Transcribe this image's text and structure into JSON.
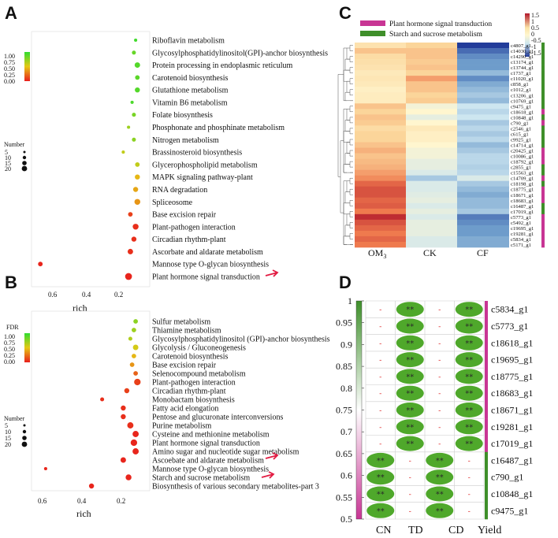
{
  "colors": {
    "red": "#e8221e",
    "orange": "#f19b1f",
    "green": "#3ad43a",
    "pink": "#c83594",
    "grn": "#3f8f2a",
    "leaf": "#4fa82b",
    "arrow": "#e21b42"
  },
  "panels": {
    "A": "A",
    "B": "B",
    "C": "C",
    "D": "D"
  },
  "chart_data": [
    {
      "type": "scatter",
      "panel": "A",
      "xlabel": "rich",
      "xticks": [
        "0.6",
        "0.4",
        "0.2"
      ],
      "xlim": [
        0.7,
        0.03
      ],
      "legend": {
        "fdr_ticks": [
          "1.00",
          "0.75",
          "0.50",
          "0.25",
          "0.00"
        ],
        "number_title": "Number",
        "number_ticks": [
          "5",
          "10",
          "15",
          "20"
        ]
      },
      "pathways": [
        "Riboflavin metabolism",
        "Glycosylphosphatidylinositol(GPI)-anchor biosynthesis",
        "Protein processing in endoplasmic reticulum",
        "Carotenoid biosynthesis",
        "Glutathione metabolism",
        "Vitamin B6 metabolism",
        "Folate biosynthesis",
        "Phosphonate and phosphinate metabolism",
        "Nitrogen metabolism",
        "Brassinosteroid biosynthesis",
        "Glycerophospholipid metabolism",
        "MAPK signaling pathway-plant",
        "RNA degradation",
        "Spliceosome",
        "Base excision repair",
        "Plant-pathogen interaction",
        "Circadian rhythm-plant",
        "Ascorbate and aldarate metabolism",
        "Mannose type O-glycan biosynthesis",
        "Plant hormone signal transduction"
      ],
      "rich": [
        0.11,
        0.12,
        0.1,
        0.1,
        0.1,
        0.13,
        0.12,
        0.15,
        0.12,
        0.18,
        0.1,
        0.1,
        0.11,
        0.1,
        0.14,
        0.11,
        0.12,
        0.14,
        0.65,
        0.15
      ],
      "fdr": [
        0.95,
        0.85,
        0.9,
        0.88,
        0.9,
        0.92,
        0.8,
        0.7,
        0.75,
        0.6,
        0.6,
        0.45,
        0.4,
        0.35,
        0.1,
        0.05,
        0.05,
        0.05,
        0.02,
        0.02
      ],
      "number": [
        1,
        2,
        5,
        3,
        4,
        1,
        2,
        1,
        2,
        1,
        3,
        4,
        4,
        6,
        3,
        6,
        4,
        5,
        3,
        9
      ],
      "highlight": "Plant hormone signal transduction"
    },
    {
      "type": "scatter",
      "panel": "B",
      "xlabel": "rich",
      "xticks": [
        "0.6",
        "0.4",
        "0.2"
      ],
      "xlim": [
        0.7,
        0.03
      ],
      "legend": {
        "fdr_title": "FDR",
        "fdr_ticks": [
          "1.00",
          "0.75",
          "0.50",
          "0.25",
          "0.00"
        ],
        "number_title": "Number",
        "number_ticks": [
          "5",
          "10",
          "15",
          "20"
        ]
      },
      "pathways": [
        "Sulfur metabolism",
        "Thiamine metabolism",
        "Glycosylphosphatidylinositol (GPI)-anchor biosynthesis",
        "Glycolysis / Gluconeogenesis",
        "Carotenoid biosynthesis",
        "Base excision repair",
        "Selenocompound metabolism",
        "Plant-pathogen interaction",
        "Circadian rhythm-plant",
        "Monobactam biosynthesis",
        "Fatty acid elongation",
        "Pentose and glucuronate interconversions",
        "Purine metabolism",
        "Cysteine and methionine metabolism",
        "Plant hormone signal transduction",
        "Amino sugar and nucleotide sugar metabolism",
        "Ascoebate and aldarate metabolism",
        "Mannose type O-glycan biosynthesis",
        "Starch and sucrose metabolism",
        "Biosynthesis of various secondary metabolites-part 3"
      ],
      "rich": [
        0.11,
        0.12,
        0.14,
        0.11,
        0.12,
        0.13,
        0.11,
        0.1,
        0.16,
        0.3,
        0.18,
        0.18,
        0.14,
        0.11,
        0.12,
        0.11,
        0.18,
        0.62,
        0.15,
        0.36
      ],
      "fdr": [
        0.75,
        0.7,
        0.65,
        0.55,
        0.45,
        0.35,
        0.2,
        0.1,
        0.1,
        0.05,
        0.05,
        0.05,
        0.05,
        0.02,
        0.02,
        0.02,
        0.02,
        0.02,
        0.02,
        0.02
      ],
      "number": [
        3,
        3,
        2,
        5,
        3,
        3,
        3,
        8,
        4,
        2,
        4,
        4,
        7,
        7,
        8,
        7,
        5,
        1,
        6,
        4
      ],
      "highlight": [
        "Plant hormone signal transduction",
        "Starch and sucrose metabolism"
      ]
    },
    {
      "type": "heatmap",
      "panel": "C",
      "columns": [
        "OM3",
        "CK",
        "CF"
      ],
      "col_main": [
        "OM",
        "CK",
        "CF"
      ],
      "col_sub": [
        "3",
        "",
        ""
      ],
      "legend": {
        "pathways": [
          "Plant hormone signal transduction",
          "Starch and sucrose metabolism"
        ],
        "scale_ticks": [
          "1.5",
          "1",
          "0.5",
          "0",
          "-0.5",
          "-1",
          "-1.5"
        ]
      },
      "rows": [
        "c4807_g1",
        "c14030_g1",
        "c14290_g1",
        "c13174_g1",
        "c13744_g1",
        "c1737_g1",
        "c11020_g1",
        "c858_g1",
        "c1012_g1",
        "c13206_g1",
        "c10769_g1",
        "c9475_g1",
        "c18618_g1",
        "c10848_g1",
        "c790_g1",
        "c2546_g1",
        "c615_g1",
        "c9925_g1",
        "c14714_g1",
        "c20425_g1",
        "c10086_g1",
        "c18792_g1",
        "c2855_g1",
        "c15563_g1",
        "c14709_g1",
        "c18198_g1",
        "c18775_g1",
        "c18671_g1",
        "c18683_g1",
        "c16487_g1",
        "c17019_g1",
        "c5773_g1",
        "c5492_g1",
        "c19695_g1",
        "c19281_g1",
        "c5834_g1",
        "c5171_g1"
      ],
      "values": [
        [
          0.3,
          0.5,
          -1.5
        ],
        [
          0.6,
          0.6,
          -1.2
        ],
        [
          0.4,
          0.6,
          -1.0
        ],
        [
          0.35,
          0.55,
          -0.9
        ],
        [
          0.3,
          0.6,
          -0.9
        ],
        [
          0.2,
          0.5,
          -0.7
        ],
        [
          0.25,
          0.8,
          -1.0
        ],
        [
          0.2,
          0.6,
          -0.8
        ],
        [
          0.1,
          0.6,
          -0.7
        ],
        [
          0.15,
          0.5,
          -0.6
        ],
        [
          0.15,
          0.55,
          -0.7
        ],
        [
          0.6,
          -0.1,
          -0.4
        ],
        [
          0.5,
          0.0,
          -0.5
        ],
        [
          0.6,
          -0.2,
          -0.4
        ],
        [
          0.55,
          0.0,
          -0.6
        ],
        [
          0.4,
          0.2,
          -0.5
        ],
        [
          0.5,
          0.1,
          -0.6
        ],
        [
          0.5,
          0.1,
          -0.5
        ],
        [
          0.6,
          0.0,
          -0.7
        ],
        [
          0.7,
          -0.1,
          -0.6
        ],
        [
          0.6,
          -0.1,
          -0.5
        ],
        [
          0.65,
          -0.2,
          -0.5
        ],
        [
          0.7,
          -0.2,
          -0.55
        ],
        [
          0.8,
          -0.3,
          -0.5
        ],
        [
          0.9,
          -0.6,
          -0.3
        ],
        [
          1.1,
          -0.3,
          -0.6
        ],
        [
          1.2,
          -0.3,
          -0.7
        ],
        [
          1.2,
          -0.25,
          -0.8
        ],
        [
          1.1,
          -0.2,
          -0.7
        ],
        [
          1.15,
          -0.3,
          -0.7
        ],
        [
          1.0,
          -0.2,
          -0.6
        ],
        [
          1.4,
          -0.3,
          -1.1
        ],
        [
          1.2,
          -0.2,
          -1.0
        ],
        [
          1.1,
          -0.2,
          -0.9
        ],
        [
          1.0,
          -0.2,
          -0.9
        ],
        [
          1.1,
          -0.3,
          -0.8
        ],
        [
          1.0,
          -0.3,
          -0.8
        ]
      ],
      "row_pathway": [
        "sucrose",
        "sucrose",
        "sucrose",
        "sucrose",
        "sucrose",
        "sucrose",
        "sucrose",
        "sucrose",
        "sucrose",
        "sucrose",
        "sucrose",
        "sucrose",
        "hormone",
        "sucrose",
        "hormone",
        "sucrose",
        "sucrose",
        "sucrose",
        "sucrose",
        "hormone",
        "hormone",
        "hormone",
        "sucrose",
        "sucrose",
        "hormone",
        "sucrose",
        "hormone",
        "hormone",
        "hormone",
        "sucrose",
        "sucrose",
        "hormone",
        "hormone",
        "hormone",
        "hormone",
        "hormone",
        "hormone"
      ]
    },
    {
      "type": "heatmap",
      "panel": "D",
      "columns": [
        "CN",
        "TD",
        "CD",
        "Yield"
      ],
      "rows": [
        "c5834_g1",
        "c5773_g1",
        "c18618_g1",
        "c19695_g1",
        "c18775_g1",
        "c18683_g1",
        "c18671_g1",
        "c19281_g1",
        "c17019_g1",
        "c16487_g1",
        "c790_g1",
        "c10848_g1",
        "c9475_g1"
      ],
      "ylim": [
        0.5,
        1
      ],
      "yticks": [
        "1",
        "0.95",
        "0.9",
        "0.85",
        "0.8",
        "0.75",
        "0.7",
        "0.65",
        "0.6",
        "0.55",
        "0.5"
      ],
      "cells": [
        [
          "-",
          "**",
          "-",
          "**"
        ],
        [
          "-",
          "**",
          "-",
          "**"
        ],
        [
          "-",
          "**",
          "-",
          "**"
        ],
        [
          "-",
          "**",
          "-",
          "**"
        ],
        [
          "-",
          "**",
          "-",
          "**"
        ],
        [
          "-",
          "**",
          "-",
          "**"
        ],
        [
          "-",
          "**",
          "-",
          "**"
        ],
        [
          "-",
          "**",
          "-",
          "**"
        ],
        [
          "-",
          "**",
          "-",
          "**"
        ],
        [
          "**",
          "-",
          "**",
          "-"
        ],
        [
          "**",
          "-",
          "**",
          "-"
        ],
        [
          "**",
          "-",
          "**",
          "-"
        ],
        [
          "**",
          "-",
          "**",
          "-"
        ]
      ],
      "row_pathway": [
        "hormone",
        "hormone",
        "hormone",
        "hormone",
        "hormone",
        "hormone",
        "hormone",
        "hormone",
        "hormone",
        "sucrose",
        "sucrose",
        "sucrose",
        "sucrose"
      ]
    }
  ]
}
